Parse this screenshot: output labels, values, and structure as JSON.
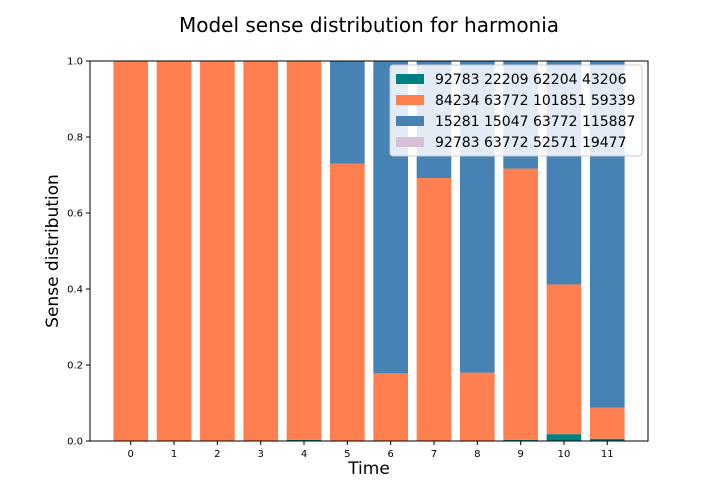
{
  "chart_data": {
    "type": "bar",
    "stacked": true,
    "title": "Model sense distribution for harmonia",
    "xlabel": "Time",
    "ylabel": "Sense distribution",
    "categories": [
      "0",
      "1",
      "2",
      "3",
      "4",
      "5",
      "6",
      "7",
      "8",
      "9",
      "10",
      "11"
    ],
    "ylim": [
      0,
      1.0
    ],
    "yticks": [
      "0.0",
      "0.2",
      "0.4",
      "0.6",
      "0.8",
      "1.0"
    ],
    "legend_position": "upper right",
    "grid": false,
    "series": [
      {
        "name": "92783 22209 62204 43206",
        "color": "#008080",
        "values": [
          0,
          0,
          0,
          0,
          0.003,
          0,
          0,
          0,
          0,
          0.003,
          0.018,
          0.006
        ]
      },
      {
        "name": "84234 63772 101851 59339",
        "color": "#ff7f50",
        "values": [
          1.0,
          1.0,
          1.0,
          1.0,
          0.997,
          0.73,
          0.178,
          0.692,
          0.18,
          0.714,
          0.394,
          0.082
        ]
      },
      {
        "name": "15281 15047 63772 115887",
        "color": "#4682b4",
        "values": [
          0,
          0,
          0,
          0,
          0,
          0.27,
          0.822,
          0.308,
          0.82,
          0.283,
          0.588,
          0.912
        ]
      },
      {
        "name": "92783 63772 52571 19477",
        "color": "#d8bfd8",
        "values": [
          0,
          0,
          0,
          0,
          0,
          0,
          0,
          0,
          0,
          0,
          0,
          0
        ]
      }
    ]
  }
}
